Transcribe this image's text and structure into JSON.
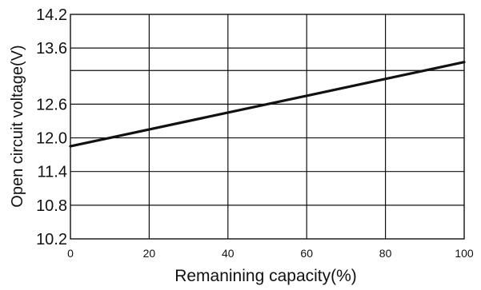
{
  "chart_data": {
    "type": "line",
    "title": "",
    "xlabel": "Remanining capacity(%)",
    "ylabel": "Open circuit voltage(V)",
    "xlim": [
      0,
      100
    ],
    "ylim": [
      10.2,
      14.2
    ],
    "x_ticks": [
      0,
      20,
      40,
      60,
      80,
      100
    ],
    "x_tick_labels": [
      "0",
      "20",
      "40",
      "60",
      "80",
      "100"
    ],
    "y_ticks": [
      10.2,
      10.8,
      11.4,
      12.0,
      12.6,
      13.2,
      13.6,
      14.2
    ],
    "y_tick_labels": [
      "10.2",
      "10.8",
      "11.4",
      "12.0",
      "12.6",
      "",
      "13.6",
      "14.2"
    ],
    "grid": true,
    "line_color": "#111111",
    "series": [
      {
        "x": [
          0,
          100
        ],
        "y": [
          11.85,
          13.35
        ]
      }
    ]
  }
}
